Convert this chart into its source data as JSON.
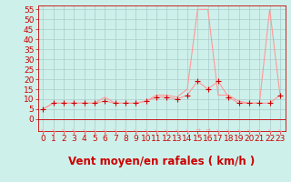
{
  "x": [
    0,
    1,
    2,
    3,
    4,
    5,
    6,
    7,
    8,
    9,
    10,
    11,
    12,
    13,
    14,
    15,
    16,
    17,
    18,
    19,
    20,
    21,
    22,
    23
  ],
  "avg_wind": [
    5,
    8,
    8,
    8,
    8,
    8,
    9,
    8,
    8,
    8,
    9,
    11,
    11,
    10,
    12,
    19,
    15,
    19,
    11,
    8,
    8,
    8,
    8,
    12
  ],
  "gusts": [
    5,
    8,
    8,
    8,
    8,
    8,
    11,
    8,
    8,
    8,
    9,
    12,
    12,
    11,
    15,
    55,
    55,
    12,
    12,
    9,
    8,
    8,
    55,
    12
  ],
  "bg_color": "#cef0ea",
  "grid_color": "#aacccc",
  "line_color": "#ff9999",
  "marker_color": "#cc0000",
  "xlabel": "Vent moyen/en rafales ( km/h )",
  "ylim_min": -6,
  "ylim_max": 57,
  "yticks": [
    0,
    5,
    10,
    15,
    20,
    25,
    30,
    35,
    40,
    45,
    50,
    55
  ],
  "xticks": [
    0,
    1,
    2,
    3,
    4,
    5,
    6,
    7,
    8,
    9,
    10,
    11,
    12,
    13,
    14,
    15,
    16,
    17,
    18,
    19,
    20,
    21,
    22,
    23
  ],
  "tick_color": "#cc0000",
  "tick_fontsize": 6.5,
  "xlabel_fontsize": 8.5,
  "xlabel_color": "#cc0000"
}
